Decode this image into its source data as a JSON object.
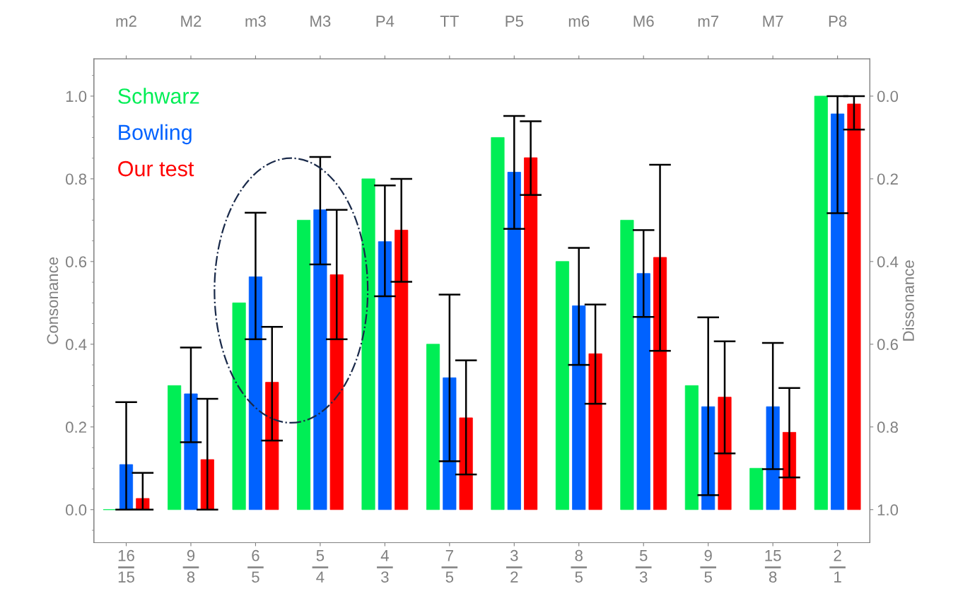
{
  "chart_data": {
    "type": "bar",
    "ylabel": "Consonance",
    "y2label": "Dissonance",
    "categories": [
      "16\n15",
      "9\n8",
      "6\n5",
      "5\n4",
      "4\n3",
      "7\n5",
      "3\n2",
      "8\n5",
      "5\n3",
      "9\n5",
      "15\n8",
      "2\n1"
    ],
    "annotations": [
      "m2",
      "M2",
      "m3",
      "M3",
      "P4",
      "TT",
      "P5",
      "m6",
      "M6",
      "m7",
      "M7",
      "P8"
    ],
    "series": [
      {
        "name": "Schwarz",
        "color": "#00ee55",
        "values": [
          0,
          0.3,
          0.5,
          0.7,
          0.8,
          0.4,
          0.9,
          0.6,
          0.7,
          0.3,
          0.1,
          1.0
        ]
      },
      {
        "name": "Bowling",
        "color": "#0062ff",
        "values": [
          0.109,
          0.28,
          0.563,
          0.725,
          0.648,
          0.319,
          0.816,
          0.493,
          0.571,
          0.249,
          0.249,
          0.957
        ],
        "errors": [
          [
            0,
            0.26
          ],
          [
            0.163,
            0.392
          ],
          [
            0.412,
            0.718
          ],
          [
            0.593,
            0.853
          ],
          [
            0.516,
            0.784
          ],
          [
            0.117,
            0.52
          ],
          [
            0.679,
            0.952
          ],
          [
            0.35,
            0.633
          ],
          [
            0.466,
            0.676
          ],
          [
            0.035,
            0.465
          ],
          [
            0.098,
            0.403
          ],
          [
            0.717,
            1.0
          ]
        ]
      },
      {
        "name": "Our test",
        "color": "#ff0000",
        "values": [
          0.027,
          0.121,
          0.308,
          0.568,
          0.676,
          0.222,
          0.851,
          0.377,
          0.61,
          0.272,
          0.187,
          0.981
        ],
        "errors": [
          [
            0,
            0.089
          ],
          [
            0,
            0.268
          ],
          [
            0.167,
            0.442
          ],
          [
            0.412,
            0.725
          ],
          [
            0.551,
            0.8
          ],
          [
            0.085,
            0.361
          ],
          [
            0.761,
            0.939
          ],
          [
            0.256,
            0.496
          ],
          [
            0.384,
            0.834
          ],
          [
            0.136,
            0.407
          ],
          [
            0.078,
            0.294
          ],
          [
            0.919,
            1.0
          ]
        ]
      }
    ],
    "ylim": [
      -0.08,
      1.09
    ],
    "yticks": [
      {
        "value": 0,
        "label": "0.0"
      },
      0.2,
      0.4,
      0.6,
      0.8,
      {
        "value": 1,
        "label": "1.0"
      }
    ],
    "y2lim": [
      1.08,
      -0.09
    ],
    "y2ticks": [
      {
        "value": 0,
        "label": "0.0"
      },
      0.2,
      0.4,
      0.6,
      0.8,
      {
        "value": 1,
        "label": "1.0"
      }
    ],
    "legend": "top left",
    "grid": false
  }
}
